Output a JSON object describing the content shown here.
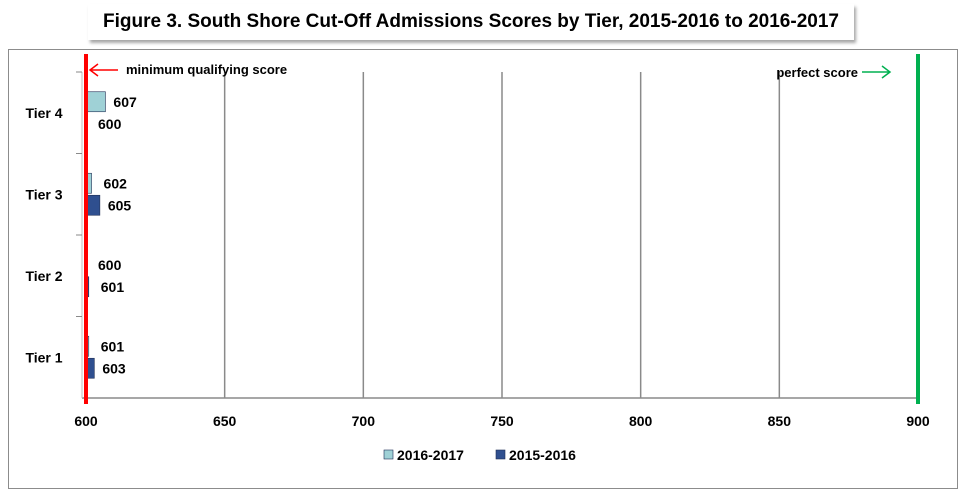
{
  "chart_data": {
    "type": "bar",
    "orientation": "horizontal",
    "title": "Figure 3. South Shore Cut-Off Admissions Scores by Tier, 2015-2016 to 2016-2017",
    "categories": [
      "Tier 1",
      "Tier 2",
      "Tier 3",
      "Tier 4"
    ],
    "series": [
      {
        "name": "2016-2017",
        "values": [
          601,
          600,
          602,
          607
        ],
        "color": "#9fd1d6"
      },
      {
        "name": "2015-2016",
        "values": [
          603,
          601,
          605,
          600
        ],
        "color": "#2f4f8f"
      }
    ],
    "xlim": [
      600,
      900
    ],
    "xticks": [
      "600",
      "650",
      "700",
      "750",
      "800",
      "850",
      "900"
    ],
    "grid": true,
    "legend_position": "bottom",
    "reference_lines": [
      {
        "value": 600,
        "label": "minimum qualifying  score",
        "color": "#ff0000"
      },
      {
        "value": 900,
        "label": "perfect score",
        "color": "#00b050"
      }
    ]
  }
}
